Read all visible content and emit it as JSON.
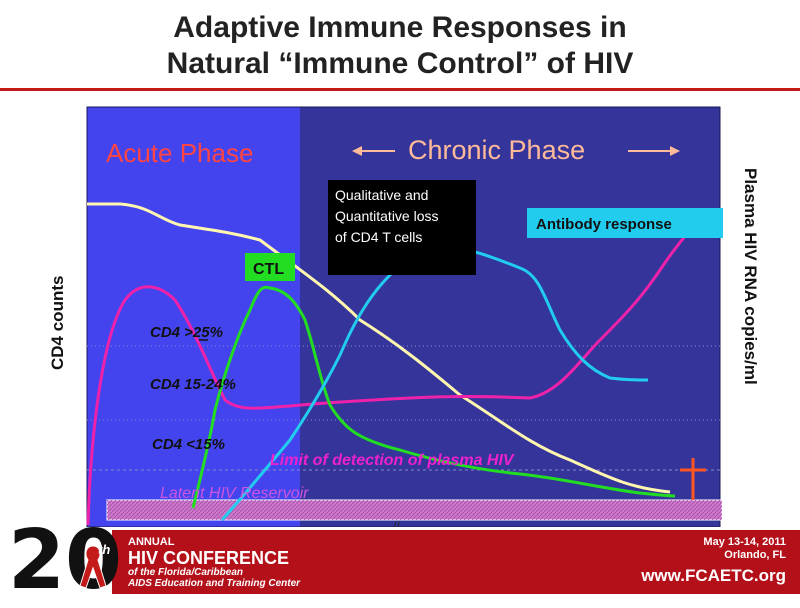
{
  "title": {
    "line1": "Adaptive Immune Responses in",
    "line2": "Natural “Immune Control” of HIV"
  },
  "labels": {
    "acute_phase": "Acute Phase",
    "chronic_phase": "Chronic Phase",
    "y_left": "CD4 counts",
    "y_right": "Plasma HIV RNA copies/ml",
    "cd4_25": "CD4 >25%",
    "cd4_15_24": "CD4 15-24%",
    "cd4_lt15": "CD4 <15%",
    "ctl": "CTL",
    "qualitative_line1": "Qualitative and",
    "qualitative_line2": "Quantitative loss",
    "qualitative_line3": "of CD4 T cells",
    "antibody": "Antibody response",
    "limit": "Limit of detection of plasma HIV",
    "reservoir": "Latent HIV Reservoir",
    "axis_break": "//"
  },
  "colors": {
    "acute_bg": "#4444ee",
    "chronic_bg": "#34349a",
    "cd4_line": "#fff7b0",
    "hiv_rna_line": "#ee22aa",
    "ctl_line": "#22dd22",
    "antibody_line": "#22ccee",
    "reservoir_bar": "#cc77cc",
    "limit_text": "#ee22cc",
    "phase_text": "#ff4444",
    "chronic_text": "#ffbb99",
    "death_cross": "#ff5522"
  },
  "footer": {
    "numeral": "20",
    "superscript": "th",
    "annual": "ANNUAL",
    "conference": "HIV CONFERENCE",
    "sub1": "of the Florida/Caribbean",
    "sub2": "AIDS Education and Training Center",
    "date": "May 13-14, 2011",
    "city": "Orlando, FL",
    "url": "www.FCAETC.org"
  }
}
